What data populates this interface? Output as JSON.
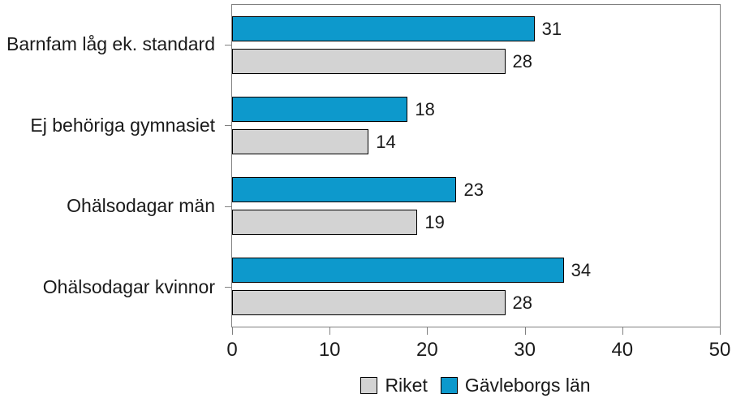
{
  "figure": {
    "background": "#ffffff",
    "text_color": "#1a1a1a",
    "axis_color": "#808080",
    "bar_border_color": "#000000"
  },
  "chart_data": {
    "type": "bar",
    "orientation": "horizontal",
    "categories": [
      "Barnfam låg ek. standard",
      "Ej behöriga gymnasiet",
      "Ohälsodagar män",
      "Ohälsodagar kvinnor"
    ],
    "series": [
      {
        "name": "Gävleborgs län",
        "color": "#0d99cc",
        "values": [
          31,
          18,
          23,
          34
        ]
      },
      {
        "name": "Riket",
        "color": "#d3d3d3",
        "values": [
          28,
          14,
          19,
          28
        ]
      }
    ],
    "bar_order_top_to_bottom": [
      "Gävleborgs län",
      "Riket"
    ],
    "value_labels_shown": true,
    "xlim": [
      0,
      50
    ],
    "x_ticks": [
      0,
      10,
      20,
      30,
      40,
      50
    ],
    "grid": false,
    "legend": {
      "position": "bottom-center",
      "items": [
        {
          "label": "Riket",
          "color": "#d3d3d3"
        },
        {
          "label": "Gävleborgs län",
          "color": "#0d99cc"
        }
      ]
    }
  }
}
